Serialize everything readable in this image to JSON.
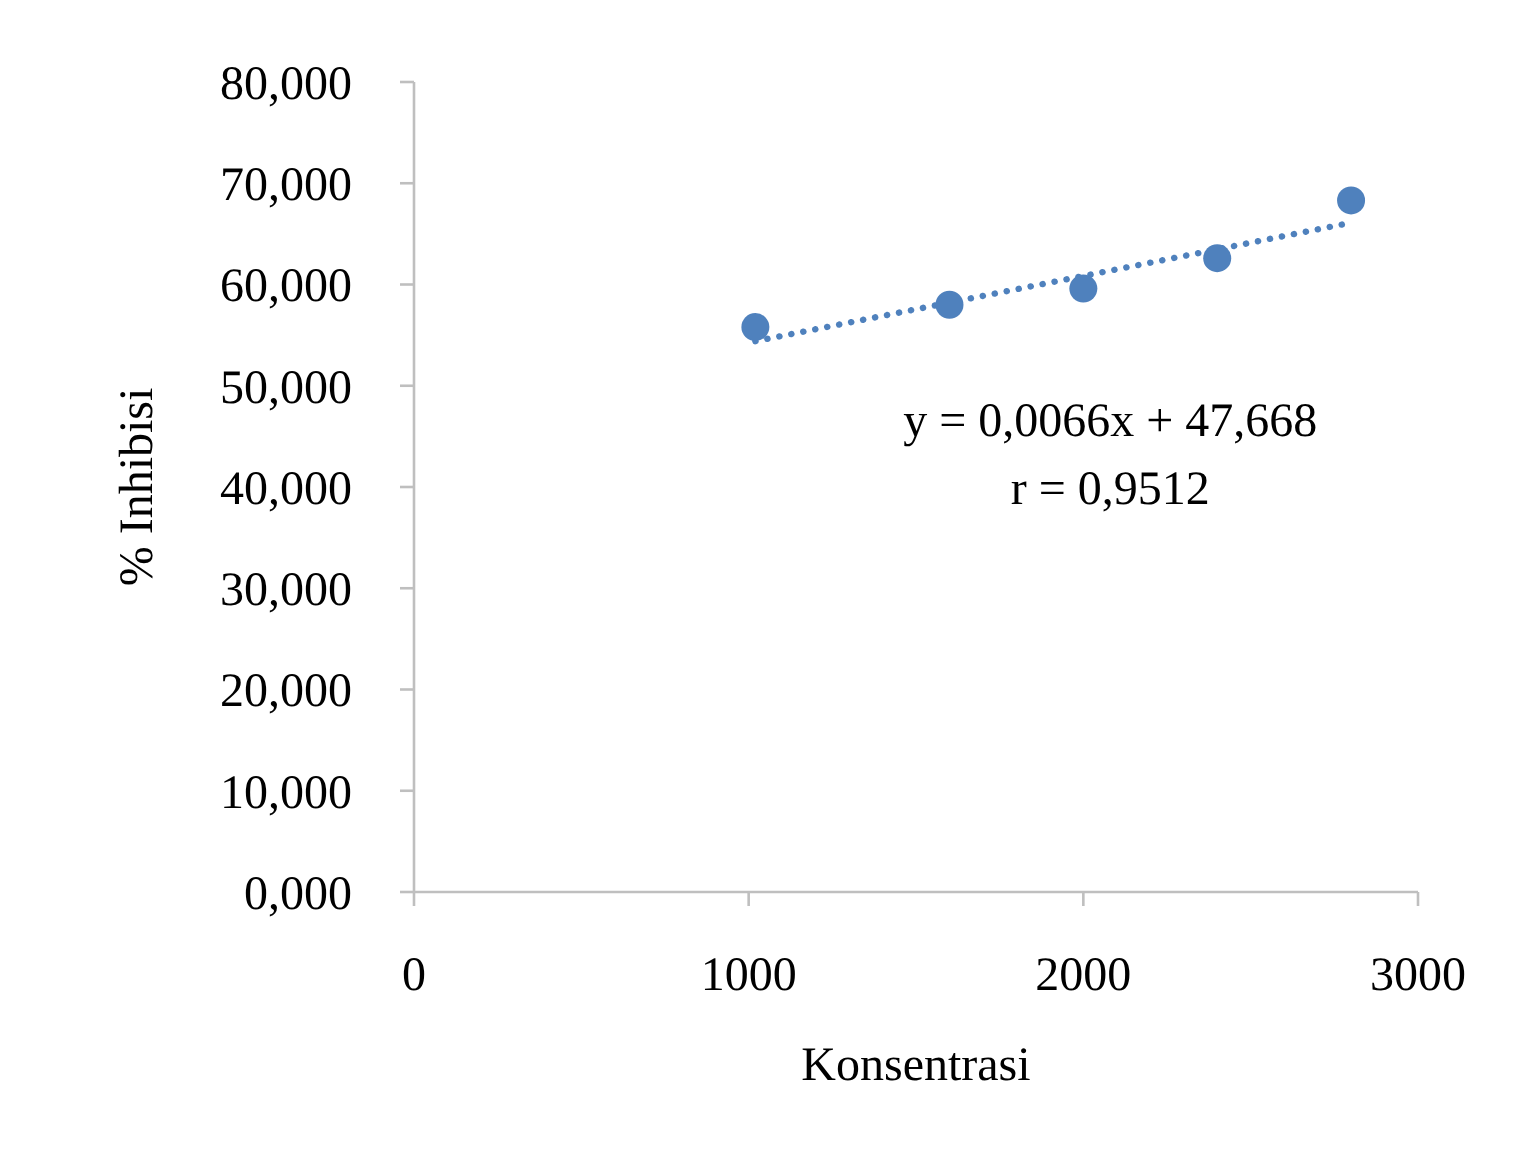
{
  "chart_data": {
    "type": "scatter",
    "xlabel": "Konsentrasi",
    "ylabel": "% Inhibisi",
    "x": [
      1020,
      1600,
      2000,
      2400,
      2800
    ],
    "series": [
      {
        "type": "scatter",
        "color": "#4f81bd",
        "values": [
          55.8,
          58.0,
          59.6,
          62.6,
          68.3
        ],
        "marker": "circle"
      },
      {
        "type": "line",
        "x": [
          1020,
          2800
        ],
        "values": [
          54.4,
          66.1
        ],
        "color": "#4f81bd",
        "line_style": "dotted"
      }
    ],
    "xlim": [
      0,
      3000
    ],
    "xticks": [
      0,
      1000,
      2000,
      3000
    ],
    "ylim": [
      0,
      80
    ],
    "yticks": [
      {
        "value": 0,
        "label": "0,000"
      },
      {
        "value": 10,
        "label": "10,000"
      },
      {
        "value": 20,
        "label": "20,000"
      },
      {
        "value": 30,
        "label": "30,000"
      },
      {
        "value": 40,
        "label": "40,000"
      },
      {
        "value": 50,
        "label": "50,000"
      },
      {
        "value": 60,
        "label": "60,000"
      },
      {
        "value": 70,
        "label": "70,000"
      },
      {
        "value": 80,
        "label": "80,000"
      }
    ],
    "annotations": [
      "y = 0,0066x + 47,668",
      "r = 0,9512"
    ]
  }
}
